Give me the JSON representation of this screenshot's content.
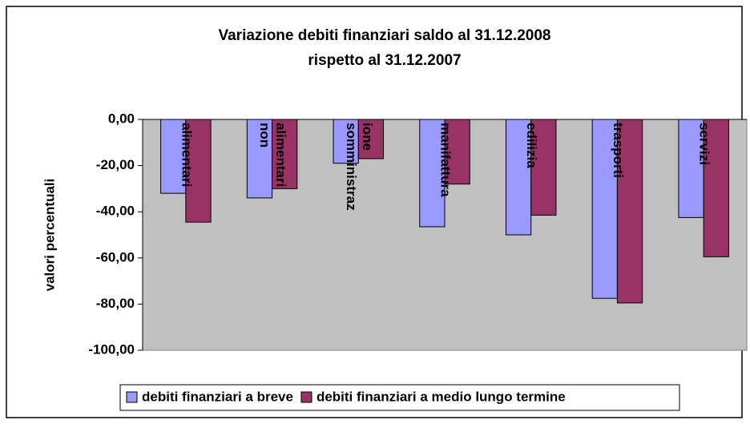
{
  "chart_data": {
    "type": "bar",
    "title": [
      "Variazione debiti finanziari saldo al 31.12.2008",
      "rispetto al 31.12.2007"
    ],
    "ylabel": "valori percentuali",
    "categories": [
      [
        "alimentari"
      ],
      [
        "non",
        "alimentari"
      ],
      [
        "somministraz",
        "ione"
      ],
      [
        "manifattura"
      ],
      [
        "edilizia"
      ],
      [
        "trasporti"
      ],
      [
        "servizi"
      ]
    ],
    "series": [
      {
        "name": "debiti finanziari a breve",
        "color": "#9999ff",
        "values": [
          -32,
          -34,
          -19,
          -46.5,
          -50,
          -77.5,
          -42.5
        ]
      },
      {
        "name": "debiti finanziari a medio lungo termine",
        "color": "#993366",
        "values": [
          -44.5,
          -30,
          -17,
          -28,
          -41.5,
          -79.5,
          -59.5
        ]
      }
    ],
    "ylim": [
      -100,
      0
    ],
    "yticks": [
      {
        "value": 0,
        "label": "0,00"
      },
      {
        "value": -20,
        "label": "-20,00"
      },
      {
        "value": -40,
        "label": "-40,00"
      },
      {
        "value": -60,
        "label": "-60,00"
      },
      {
        "value": -80,
        "label": "-80,00"
      },
      {
        "value": -100,
        "label": "-100,00"
      }
    ],
    "legend": "bottom"
  }
}
